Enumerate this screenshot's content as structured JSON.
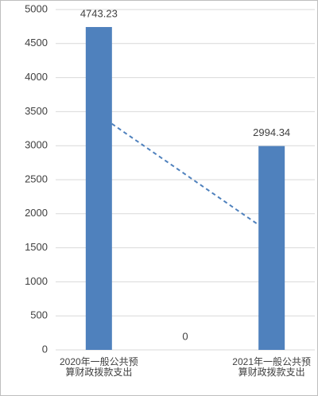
{
  "chart_data": {
    "type": "bar",
    "categories": [
      "2020年一般公共预算财政拨款支出",
      null,
      "2021年一般公共预算财政拨款支出"
    ],
    "values": [
      4743.23,
      0,
      2994.34
    ],
    "color": "#4f81bd",
    "ylim": [
      0,
      5000
    ],
    "yticks": [
      0,
      500,
      1000,
      1500,
      2000,
      2500,
      3000,
      3500,
      4000,
      4500,
      5000
    ],
    "grid": true,
    "trendline": true
  }
}
